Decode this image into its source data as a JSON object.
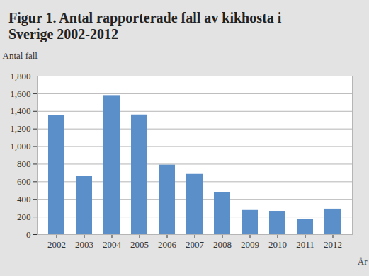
{
  "chart_data": {
    "type": "bar",
    "title": "Figur 1. Antal rapporterade fall av kikhosta i Sverige 2002-2012",
    "y_label": "Antal fall",
    "x_label": "År",
    "categories": [
      "2002",
      "2003",
      "2004",
      "2005",
      "2006",
      "2007",
      "2008",
      "2009",
      "2010",
      "2011",
      "2012"
    ],
    "values": [
      1350,
      665,
      1580,
      1360,
      790,
      685,
      480,
      275,
      265,
      175,
      290
    ],
    "color": "#5b8fc9",
    "ylim": [
      0,
      1800
    ],
    "yticks": [
      0,
      200,
      400,
      600,
      800,
      1000,
      1200,
      1400,
      1600,
      1800
    ],
    "grid": true
  }
}
